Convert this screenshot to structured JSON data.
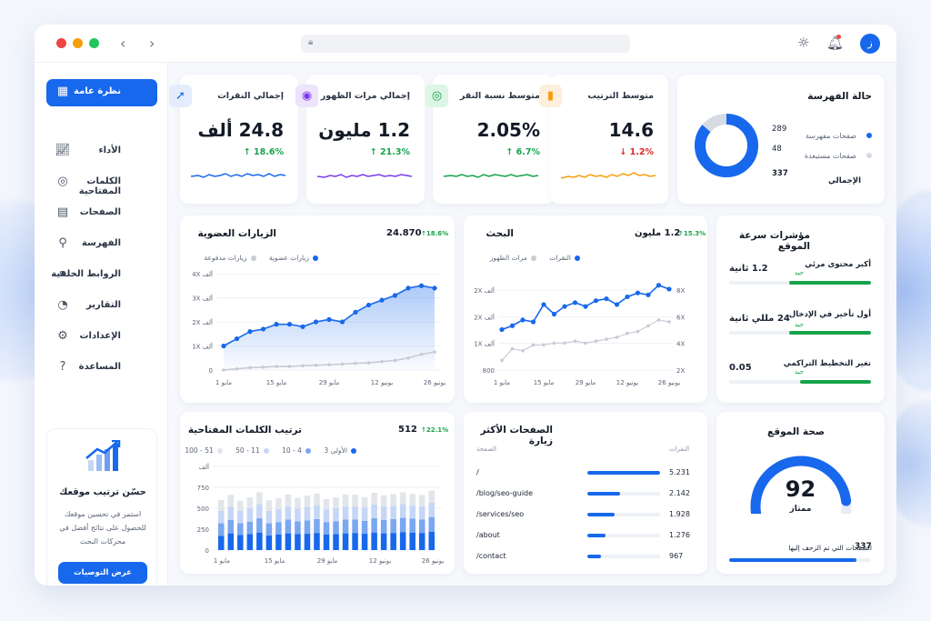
{
  "window": {
    "colors": {
      "accent": "#1768ec",
      "dot_red": "#ef4444",
      "dot_yellow": "#f59e0b",
      "dot_green": "#22c55e"
    },
    "avatar": "ز"
  },
  "sidebar": {
    "items": [
      {
        "label": "نظرة عامة",
        "icon": "grid-icon"
      },
      {
        "label": "الأداء",
        "icon": "chart-line-icon"
      },
      {
        "label": "الكلمات المفتاحية",
        "icon": "target-icon"
      },
      {
        "label": "الصفحات",
        "icon": "document-icon"
      },
      {
        "label": "الفهرسة",
        "icon": "search-icon"
      },
      {
        "label": "الروابط الخلفية",
        "icon": "link-icon"
      },
      {
        "label": "التقارير",
        "icon": "pie-icon"
      },
      {
        "label": "الإعدادات",
        "icon": "gear-icon"
      },
      {
        "label": "المساعدة",
        "icon": "help-icon"
      }
    ],
    "promo": {
      "title": "حسّن ترتيب موقعك",
      "text": "استمر في تحسين موقعك للحصول على نتائج أفضل في محركات البحث",
      "button": "عرض التوصيات"
    }
  },
  "kpis": [
    {
      "title": "إجمالي النقرات",
      "value": "24.8 ألف",
      "delta": "18.6%",
      "direction": "up",
      "color": "#1768ec",
      "icon": "cursor-icon"
    },
    {
      "title": "إجمالي مرات الظهور",
      "value": "1.2 مليون",
      "delta": "21.3%",
      "direction": "up",
      "color": "#7c3aed",
      "icon": "eye-icon"
    },
    {
      "title": "متوسط نسبة النقر",
      "value": "2.05%",
      "delta": "6.7%",
      "direction": "up",
      "color": "#16a34a",
      "icon": "click-target-icon"
    },
    {
      "title": "متوسط الترتيب",
      "value": "14.6",
      "delta": "1.2%",
      "direction": "down",
      "color": "#f59e0b",
      "icon": "bar-chart-icon"
    }
  ],
  "indexing": {
    "title": "حالة الفهرسة",
    "rows": [
      {
        "label": "صفحات مفهرسة",
        "value": "289",
        "color": "#1768ec"
      },
      {
        "label": "صفحات مستبعدة",
        "value": "48",
        "color": "#d5dae3"
      }
    ],
    "total_label": "الإجمالي",
    "total_value": "337"
  },
  "organic": {
    "title": "الزيارات العضوية",
    "value": "24.870",
    "delta": "18.6%",
    "legend": [
      "زيارات عضوية",
      "زيارات مدفوعة"
    ]
  },
  "search": {
    "title": "البحث",
    "value": "1.2 مليون",
    "delta": "15.3%",
    "legend": [
      "النقرات",
      "مرات الظهور"
    ]
  },
  "speed": {
    "title": "مؤشرات سرعة الموقع",
    "rows": [
      {
        "name": "أكبر محتوى مرئي",
        "value": "1.2 ثانية",
        "status": "جيد",
        "level": 0.58
      },
      {
        "name": "أول تأخير في الإدخال",
        "value": "24 مللي ثانية",
        "status": "جيد",
        "level": 0.58
      },
      {
        "name": "تغير التخطيط التراكمي",
        "value": "0.05",
        "status": "جيد",
        "level": 0.5
      }
    ]
  },
  "keywords": {
    "title": "ترتيب الكلمات المفتاحية",
    "value": "512",
    "delta": "22.1%",
    "legend": [
      "الأولى 3",
      "4 - 10",
      "11 - 50",
      "51 - 100"
    ]
  },
  "top_pages": {
    "title": "الصفحات الأكثر زيارة",
    "col_page": "الصفحة",
    "col_clicks": "النقرات",
    "rows": [
      {
        "path": "/",
        "clicks": "5.231",
        "share": 1.0
      },
      {
        "path": "/blog/seo-guide",
        "clicks": "2.142",
        "share": 0.45
      },
      {
        "path": "/services/seo",
        "clicks": "1.928",
        "share": 0.38
      },
      {
        "path": "/about",
        "clicks": "1.276",
        "share": 0.25
      },
      {
        "path": "/contact",
        "clicks": "967",
        "share": 0.19
      }
    ]
  },
  "health": {
    "title": "صحة الموقع",
    "score": "92",
    "score_value": 92,
    "status": "ممتاز",
    "crawled_label": "الصفحات التي تم الزحف إليها",
    "crawled_value": "337",
    "crawled_level": 0.9
  },
  "chart_data": [
    {
      "type": "line",
      "title": "الزيارات العضوية",
      "x_ticks": [
        "1 مايو",
        "15 مايو",
        "29 مايو",
        "12 يونيو",
        "26 يونيو"
      ],
      "y_ticks": [
        "0",
        "1X ألف",
        "2X ألف",
        "3X ألف",
        "4X ألف"
      ],
      "ylim": [
        0,
        4
      ],
      "series": [
        {
          "name": "زيارات عضوية",
          "color": "#1768ec",
          "values": [
            1.0,
            1.3,
            1.6,
            1.7,
            1.9,
            1.9,
            1.8,
            2.0,
            2.1,
            2.0,
            2.4,
            2.7,
            2.9,
            3.1,
            3.4,
            3.5,
            3.4
          ]
        },
        {
          "name": "زيارات مدفوعة",
          "color": "#c7cbd4",
          "values": [
            0.0,
            0.05,
            0.1,
            0.12,
            0.15,
            0.15,
            0.18,
            0.2,
            0.22,
            0.25,
            0.28,
            0.3,
            0.35,
            0.4,
            0.5,
            0.65,
            0.75
          ]
        }
      ]
    },
    {
      "type": "line",
      "title": "البحث",
      "x_ticks": [
        "1 مايو",
        "15 مايو",
        "29 مايو",
        "12 يونيو",
        "26 يونيو"
      ],
      "y_left_ticks": [
        "800",
        "1X ألف",
        "2X ألف",
        "2X ألف"
      ],
      "y_right_ticks": [
        "2X",
        "4X",
        "6X",
        "8X"
      ],
      "series": [
        {
          "name": "النقرات",
          "color": "#1768ec",
          "values": [
            2.1,
            2.3,
            2.6,
            2.5,
            3.4,
            2.9,
            3.3,
            3.5,
            3.3,
            3.6,
            3.7,
            3.4,
            3.8,
            4.0,
            3.9,
            4.4,
            4.2
          ]
        },
        {
          "name": "مرات الظهور",
          "color": "#c7cbd4",
          "values": [
            0.5,
            1.1,
            1.0,
            1.3,
            1.3,
            1.4,
            1.4,
            1.5,
            1.4,
            1.5,
            1.6,
            1.7,
            1.9,
            2.0,
            2.3,
            2.6,
            2.5
          ]
        }
      ]
    },
    {
      "type": "bar",
      "title": "ترتيب الكلمات المفتاحية",
      "x_ticks": [
        "1 مايو",
        "15 مايو",
        "29 مايو",
        "12 يونيو",
        "26 يونيو"
      ],
      "y_ticks": [
        "0",
        "250",
        "500",
        "750",
        "ألف"
      ],
      "ylim": [
        0,
        1000
      ],
      "stacked": true,
      "series": [
        {
          "name": "الأولى 3",
          "color": "#1768ec",
          "values": [
            170,
            200,
            180,
            190,
            210,
            175,
            185,
            200,
            190,
            195,
            205,
            185,
            190,
            200,
            205,
            195,
            210,
            200,
            205,
            215,
            210,
            205,
            220
          ]
        },
        {
          "name": "4 - 10",
          "color": "#7aa7f0",
          "values": [
            150,
            160,
            140,
            150,
            170,
            145,
            150,
            165,
            155,
            160,
            165,
            150,
            155,
            165,
            160,
            155,
            170,
            160,
            165,
            170,
            165,
            160,
            175
          ]
        },
        {
          "name": "11 - 50",
          "color": "#c5d6f6",
          "values": [
            150,
            160,
            150,
            160,
            170,
            150,
            155,
            160,
            150,
            160,
            165,
            150,
            155,
            160,
            160,
            155,
            165,
            160,
            160,
            165,
            160,
            160,
            170
          ]
        },
        {
          "name": "51 - 100",
          "color": "#e2e5ea",
          "values": [
            130,
            140,
            120,
            130,
            140,
            125,
            130,
            140,
            130,
            135,
            140,
            125,
            130,
            140,
            135,
            130,
            140,
            135,
            140,
            140,
            135,
            135,
            145
          ]
        }
      ]
    }
  ]
}
